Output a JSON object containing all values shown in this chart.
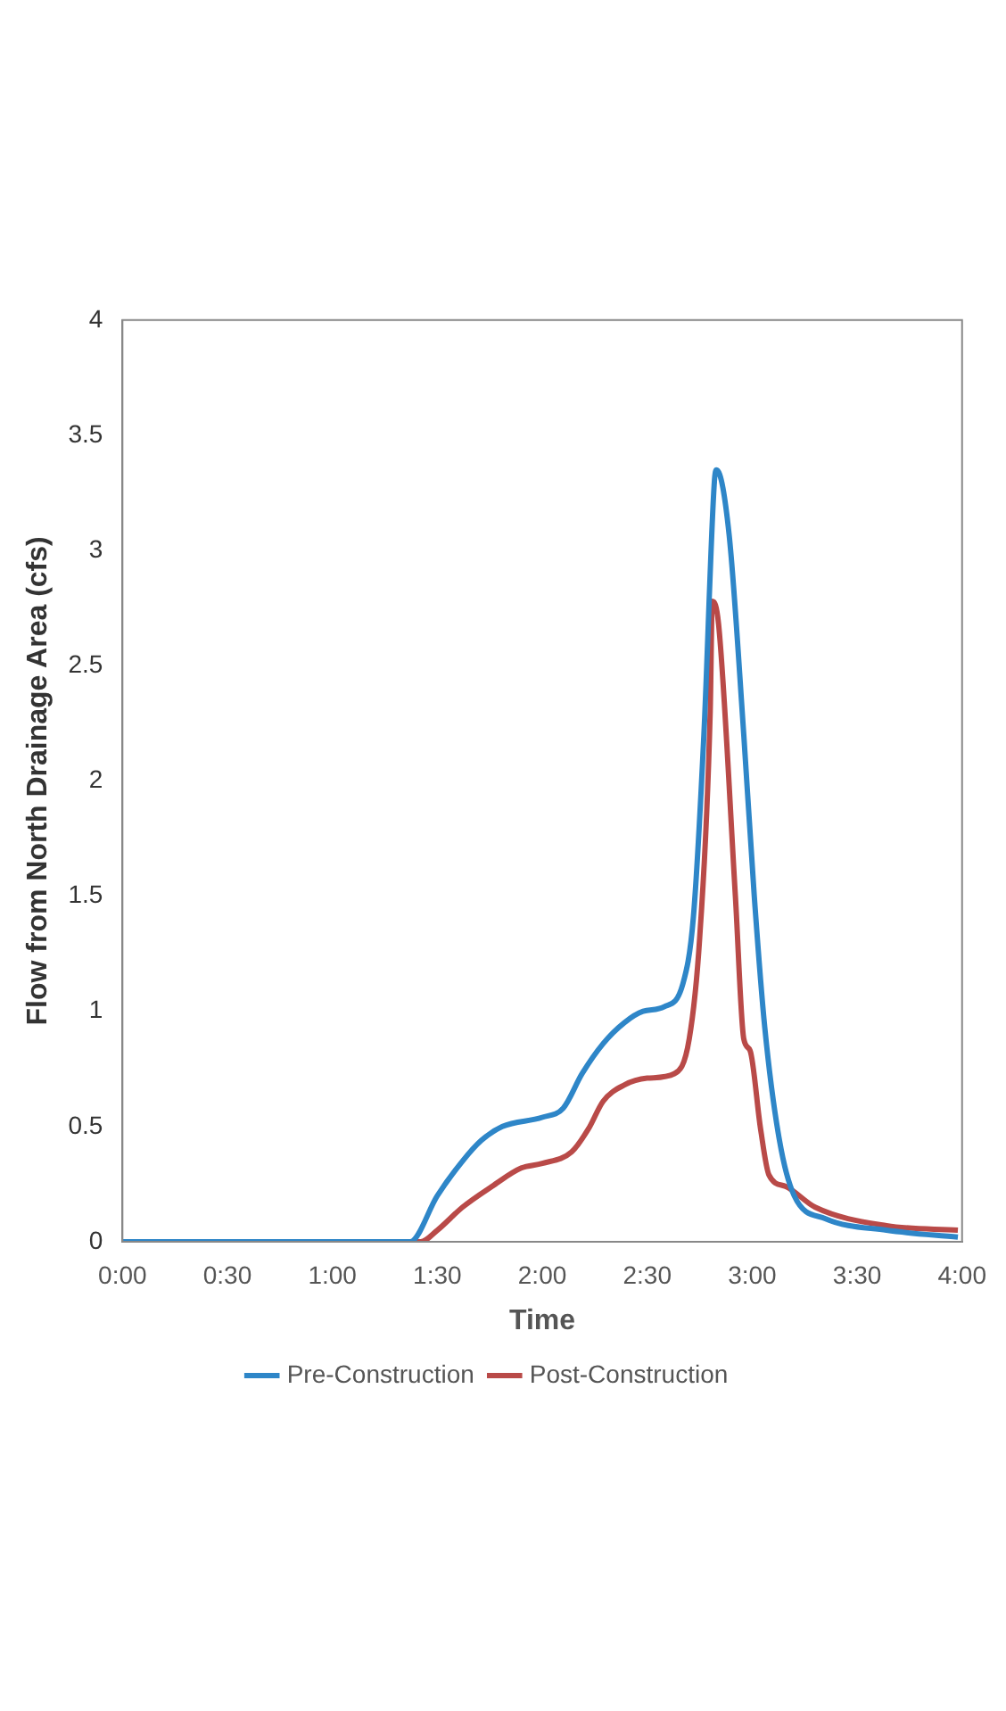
{
  "chart_data": {
    "type": "line",
    "xlabel": "Time",
    "ylabel": "Flow from North Drainage Area (cfs)",
    "xlim": [
      0,
      4
    ],
    "xticks": [
      {
        "value": 0,
        "label": "0:00"
      },
      {
        "value": 0.5,
        "label": "0:30"
      },
      {
        "value": 1,
        "label": "1:00"
      },
      {
        "value": 1.5,
        "label": "1:30"
      },
      {
        "value": 2,
        "label": "2:00"
      },
      {
        "value": 2.5,
        "label": "2:30"
      },
      {
        "value": 3,
        "label": "3:00"
      },
      {
        "value": 3.5,
        "label": "3:30"
      },
      {
        "value": 4,
        "label": "4:00"
      }
    ],
    "ylim": [
      0,
      4
    ],
    "yticks": [
      0,
      0.5,
      1,
      1.5,
      2,
      2.5,
      3,
      3.5,
      4
    ],
    "grid": false,
    "legend": "bottom",
    "marker": "none",
    "line_style": "solid",
    "series": [
      {
        "name": "Pre-Construction",
        "color": "#2e86c8",
        "x": [
          0,
          1,
          1.37,
          1.5,
          1.62,
          1.71,
          1.81,
          2,
          2.1,
          2.19,
          2.29,
          2.39,
          2.48,
          2.58,
          2.67,
          2.72,
          2.77,
          2.82,
          2.83,
          2.89,
          2.96,
          3.01,
          3.06,
          3.13,
          3.2,
          3.35,
          3.64,
          3.98
        ],
        "values": [
          0,
          0,
          0,
          0.2,
          0.35,
          0.44,
          0.5,
          0.54,
          0.58,
          0.73,
          0.86,
          0.95,
          1.0,
          1.02,
          1.12,
          1.41,
          2.2,
          3.3,
          3.35,
          3.07,
          2.2,
          1.5,
          0.93,
          0.44,
          0.2,
          0.1,
          0.05,
          0.02
        ]
      },
      {
        "name": "Post-Construction",
        "color": "#b94a48",
        "x": [
          0,
          1,
          1.42,
          1.5,
          1.62,
          1.76,
          1.9,
          2,
          2.14,
          2.22,
          2.29,
          2.39,
          2.5,
          2.63,
          2.7,
          2.75,
          2.8,
          2.81,
          2.84,
          2.92,
          2.96,
          2.99,
          3.04,
          3.08,
          3.16,
          3.3,
          3.64,
          3.98
        ],
        "values": [
          0,
          0,
          0,
          0.05,
          0.15,
          0.24,
          0.32,
          0.34,
          0.39,
          0.49,
          0.61,
          0.68,
          0.71,
          0.73,
          0.88,
          1.32,
          2.3,
          2.78,
          2.68,
          1.5,
          0.88,
          0.83,
          0.49,
          0.29,
          0.24,
          0.15,
          0.07,
          0.05
        ]
      }
    ]
  }
}
